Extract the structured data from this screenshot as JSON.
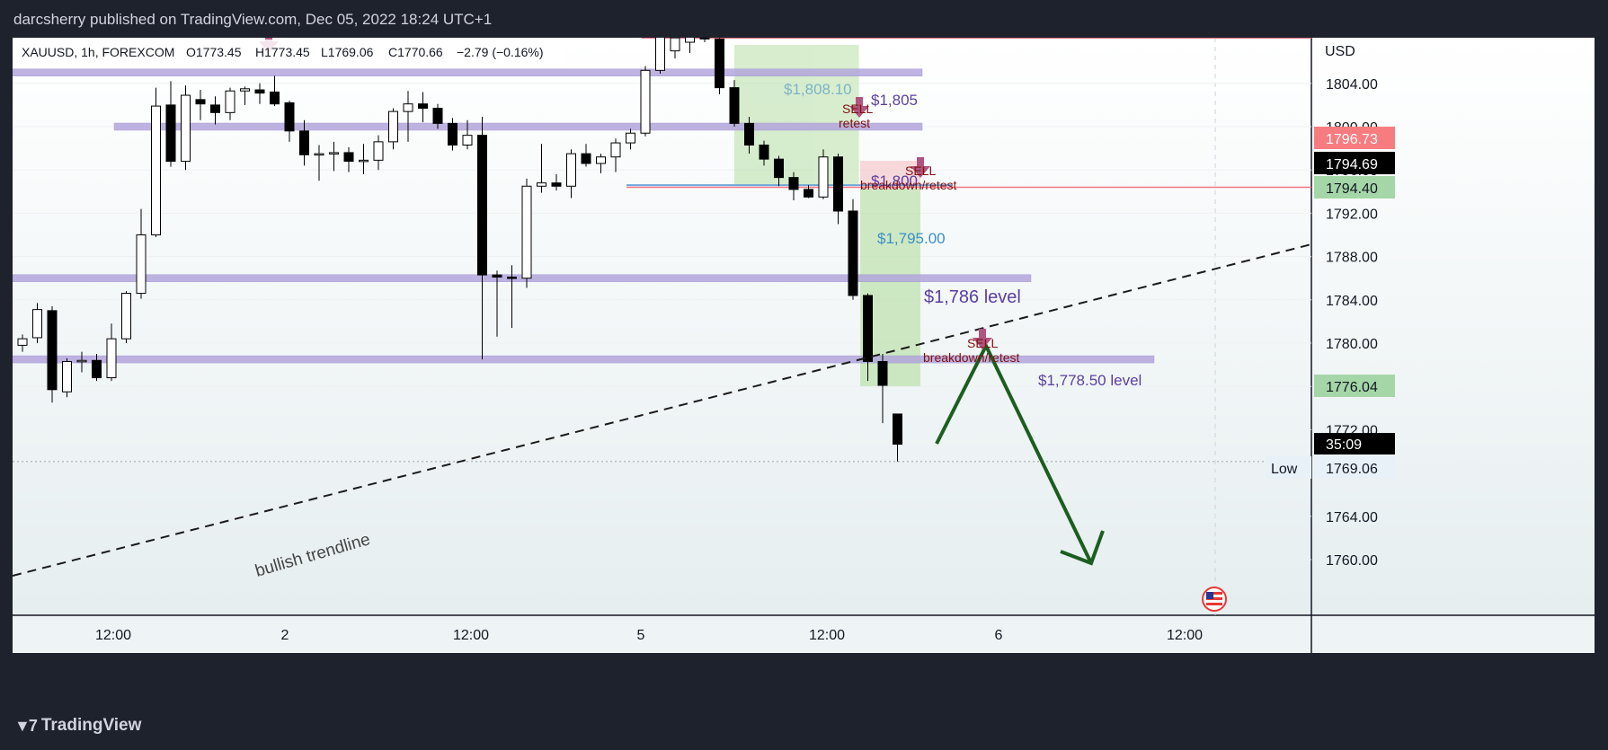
{
  "header": {
    "publish_line": "darcsherry published on TradingView.com, Dec 05, 2022 18:24 UTC+1"
  },
  "footer": {
    "brand": "TradingView"
  },
  "legend": {
    "symbol": "XAUUSD, 1h, FOREXCOM",
    "open": "O1773.45",
    "high": "H1773.45",
    "low": "L1769.06",
    "close": "C1770.66",
    "change": "−2.79 (−0.16%)"
  },
  "price_axis": {
    "currency": "USD",
    "badges": {
      "top_red": "1796.73",
      "current": "1794.69",
      "green_1": "1794.40",
      "green_2": "1776.04",
      "countdown": "35:09",
      "low_value": "1769.06",
      "low_label": "Low"
    }
  },
  "annotations": {
    "level_1808": "$1,808.10",
    "level_1805": "$1,805",
    "level_1800": "$1,800",
    "level_1795": "$1,795.00",
    "level_1786": "$1,786 level",
    "level_1778": "$1,778.50 level",
    "sell_retest_1": "SELL",
    "sell_retest_2": "retest",
    "sell_bd_1": "SELL",
    "sell_bd_2": "breakdown/retest",
    "sell_bd2_1": "SELL",
    "sell_bd2_2": "breakdown/retest",
    "trendline_label": "bullish trendline"
  },
  "colors": {
    "background": "#f8fafb",
    "level_band": "#b3a6dc",
    "level_text": "#5b3fa0",
    "sell_text": "#7f1010",
    "sell_arrow": "#b0557f",
    "green_zone": "#b7dfa5",
    "projection_arrow": "#1c5e20",
    "red_badge": "#f77c80",
    "green_badge": "#a5d6a7"
  },
  "chart_data": {
    "type": "candlestick",
    "title": "XAUUSD, 1h, FOREXCOM",
    "ylabel": "USD",
    "ylim": [
      1757.5,
      1809.5
    ],
    "y_ticks": [
      1760,
      1764,
      1768,
      1772,
      1776,
      1780,
      1784,
      1788,
      1792,
      1796,
      1800,
      1804
    ],
    "y_tick_labels": [
      "1760.00",
      "1764.00",
      "1768.00",
      "1772.00",
      "1776.00",
      "1780.00",
      "1784.00",
      "1788.00",
      "1792.00",
      "1796.00",
      "1800.00",
      "1804.00"
    ],
    "x_tick_labels": [
      "12:00",
      "2",
      "12:00",
      "5",
      "12:00",
      "6",
      "12:00"
    ],
    "grid": true,
    "candles": [
      {
        "o": 1779.8,
        "h": 1780.8,
        "l": 1779.2,
        "c": 1780.4
      },
      {
        "o": 1780.5,
        "h": 1783.7,
        "l": 1780.0,
        "c": 1783.1
      },
      {
        "o": 1783.0,
        "h": 1783.4,
        "l": 1774.5,
        "c": 1775.7
      },
      {
        "o": 1775.5,
        "h": 1778.6,
        "l": 1775.0,
        "c": 1778.3
      },
      {
        "o": 1778.3,
        "h": 1779.2,
        "l": 1777.3,
        "c": 1778.4
      },
      {
        "o": 1778.4,
        "h": 1779.0,
        "l": 1776.5,
        "c": 1776.8
      },
      {
        "o": 1776.8,
        "h": 1781.8,
        "l": 1776.5,
        "c": 1780.4
      },
      {
        "o": 1780.4,
        "h": 1784.8,
        "l": 1780.0,
        "c": 1784.6
      },
      {
        "o": 1784.6,
        "h": 1792.4,
        "l": 1784.1,
        "c": 1790.0
      },
      {
        "o": 1790.0,
        "h": 1803.6,
        "l": 1789.8,
        "c": 1801.9
      },
      {
        "o": 1802.0,
        "h": 1804.2,
        "l": 1796.3,
        "c": 1796.8
      },
      {
        "o": 1796.8,
        "h": 1803.8,
        "l": 1796.0,
        "c": 1802.9
      },
      {
        "o": 1802.5,
        "h": 1803.4,
        "l": 1800.6,
        "c": 1802.1
      },
      {
        "o": 1802.0,
        "h": 1802.8,
        "l": 1800.2,
        "c": 1801.3
      },
      {
        "o": 1801.3,
        "h": 1803.6,
        "l": 1800.6,
        "c": 1803.3
      },
      {
        "o": 1803.3,
        "h": 1803.7,
        "l": 1802.0,
        "c": 1803.5
      },
      {
        "o": 1803.4,
        "h": 1804.0,
        "l": 1802.1,
        "c": 1803.1
      },
      {
        "o": 1803.2,
        "h": 1804.7,
        "l": 1801.9,
        "c": 1802.1
      },
      {
        "o": 1802.2,
        "h": 1802.4,
        "l": 1798.6,
        "c": 1799.6
      },
      {
        "o": 1799.6,
        "h": 1800.6,
        "l": 1796.4,
        "c": 1797.4
      },
      {
        "o": 1797.4,
        "h": 1798.3,
        "l": 1795.0,
        "c": 1797.5
      },
      {
        "o": 1797.5,
        "h": 1798.6,
        "l": 1795.9,
        "c": 1797.6
      },
      {
        "o": 1797.6,
        "h": 1798.1,
        "l": 1795.8,
        "c": 1796.8
      },
      {
        "o": 1796.8,
        "h": 1798.4,
        "l": 1795.6,
        "c": 1796.9
      },
      {
        "o": 1796.9,
        "h": 1799.2,
        "l": 1796.0,
        "c": 1798.6
      },
      {
        "o": 1798.6,
        "h": 1801.7,
        "l": 1797.9,
        "c": 1801.4
      },
      {
        "o": 1801.4,
        "h": 1803.3,
        "l": 1798.6,
        "c": 1802.1
      },
      {
        "o": 1802.1,
        "h": 1803.2,
        "l": 1800.4,
        "c": 1801.7
      },
      {
        "o": 1801.7,
        "h": 1802.1,
        "l": 1799.8,
        "c": 1800.3
      },
      {
        "o": 1800.3,
        "h": 1800.8,
        "l": 1797.8,
        "c": 1798.3
      },
      {
        "o": 1798.3,
        "h": 1800.6,
        "l": 1797.9,
        "c": 1799.2
      },
      {
        "o": 1799.2,
        "h": 1800.9,
        "l": 1778.5,
        "c": 1786.3
      },
      {
        "o": 1786.3,
        "h": 1786.7,
        "l": 1780.6,
        "c": 1786.1
      },
      {
        "o": 1786.1,
        "h": 1787.2,
        "l": 1781.4,
        "c": 1786.0
      },
      {
        "o": 1786.0,
        "h": 1795.2,
        "l": 1785.1,
        "c": 1794.5
      },
      {
        "o": 1794.5,
        "h": 1798.4,
        "l": 1793.9,
        "c": 1794.8
      },
      {
        "o": 1794.8,
        "h": 1795.6,
        "l": 1794.1,
        "c": 1794.5
      },
      {
        "o": 1794.5,
        "h": 1797.9,
        "l": 1793.4,
        "c": 1797.5
      },
      {
        "o": 1797.5,
        "h": 1798.4,
        "l": 1796.3,
        "c": 1796.6
      },
      {
        "o": 1796.6,
        "h": 1797.5,
        "l": 1795.7,
        "c": 1797.2
      },
      {
        "o": 1797.2,
        "h": 1798.9,
        "l": 1795.8,
        "c": 1798.5
      },
      {
        "o": 1798.5,
        "h": 1799.8,
        "l": 1797.9,
        "c": 1799.4
      },
      {
        "o": 1799.4,
        "h": 1805.6,
        "l": 1799.1,
        "c": 1805.2
      },
      {
        "o": 1805.2,
        "h": 1809.5,
        "l": 1804.9,
        "c": 1808.9
      },
      {
        "o": 1807.0,
        "h": 1809.4,
        "l": 1806.3,
        "c": 1808.2
      },
      {
        "o": 1807.8,
        "h": 1809.4,
        "l": 1806.8,
        "c": 1809.3
      },
      {
        "o": 1809.3,
        "h": 1809.8,
        "l": 1807.8,
        "c": 1808.1
      },
      {
        "o": 1808.1,
        "h": 1808.4,
        "l": 1803.0,
        "c": 1803.6
      },
      {
        "o": 1803.6,
        "h": 1804.3,
        "l": 1800.0,
        "c": 1800.3
      },
      {
        "o": 1800.3,
        "h": 1800.9,
        "l": 1797.5,
        "c": 1798.3
      },
      {
        "o": 1798.3,
        "h": 1798.7,
        "l": 1796.4,
        "c": 1797.0
      },
      {
        "o": 1797.0,
        "h": 1797.3,
        "l": 1794.5,
        "c": 1795.3
      },
      {
        "o": 1795.3,
        "h": 1795.8,
        "l": 1793.2,
        "c": 1794.2
      },
      {
        "o": 1794.2,
        "h": 1794.6,
        "l": 1793.4,
        "c": 1793.5
      },
      {
        "o": 1793.5,
        "h": 1797.9,
        "l": 1793.3,
        "c": 1797.2
      },
      {
        "o": 1797.2,
        "h": 1797.5,
        "l": 1791.0,
        "c": 1792.2
      },
      {
        "o": 1792.2,
        "h": 1793.3,
        "l": 1784.0,
        "c": 1784.4
      },
      {
        "o": 1784.4,
        "h": 1784.6,
        "l": 1776.5,
        "c": 1778.3
      },
      {
        "o": 1778.3,
        "h": 1779.0,
        "l": 1772.6,
        "c": 1776.1
      },
      {
        "o": 1773.45,
        "h": 1773.45,
        "l": 1769.06,
        "c": 1770.66
      }
    ],
    "levels": [
      1805,
      1800,
      1795,
      1786,
      1778.5
    ],
    "last_price": 1770.66,
    "day_low": 1769.06
  }
}
